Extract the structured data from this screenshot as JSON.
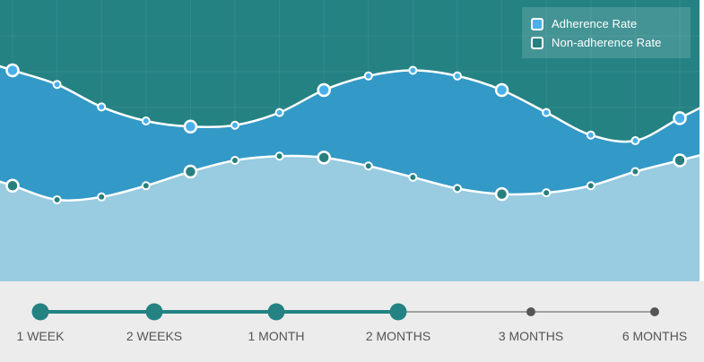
{
  "colors": {
    "background_top": "#248283",
    "adherence_fill": "#3399c7",
    "adherence_point": "#4ab0ea",
    "nonadherence_fill": "#99cbe1",
    "nonadherence_point": "#27807f",
    "line": "#ffffff",
    "timeline_bg": "#ececec",
    "timeline_active": "#248283",
    "timeline_inactive": "#555555"
  },
  "legend": {
    "adherence_label": "Adherence Rate",
    "nonadherence_label": "Non-adherence Rate"
  },
  "chart_data": {
    "type": "area",
    "title": "",
    "xlabel": "",
    "ylabel": "",
    "grid": true,
    "legend_position": "top-right",
    "ylim": [
      0,
      100
    ],
    "series": [
      {
        "name": "Adherence Rate",
        "values": [
          75,
          70,
          62,
          57,
          55,
          55.5,
          60,
          68,
          73,
          75,
          73,
          68,
          60,
          52,
          50,
          58
        ],
        "highlighted": [
          0,
          4,
          7,
          11,
          15
        ]
      },
      {
        "name": "Non-adherence Rate",
        "values": [
          34,
          29,
          30,
          34,
          39,
          43,
          44.5,
          44,
          41,
          37,
          33,
          31,
          31.5,
          34,
          39,
          43
        ],
        "highlighted": [
          0,
          4,
          7,
          11,
          15
        ]
      }
    ]
  },
  "timeline": {
    "items": [
      {
        "label": "1 WEEK",
        "active": true
      },
      {
        "label": "2 WEEKS",
        "active": true
      },
      {
        "label": "1 MONTH",
        "active": true
      },
      {
        "label": "2 MONTHS",
        "active": true
      },
      {
        "label": "3 MONTHS",
        "active": false
      },
      {
        "label": "6 MONTHS",
        "active": false
      }
    ]
  }
}
